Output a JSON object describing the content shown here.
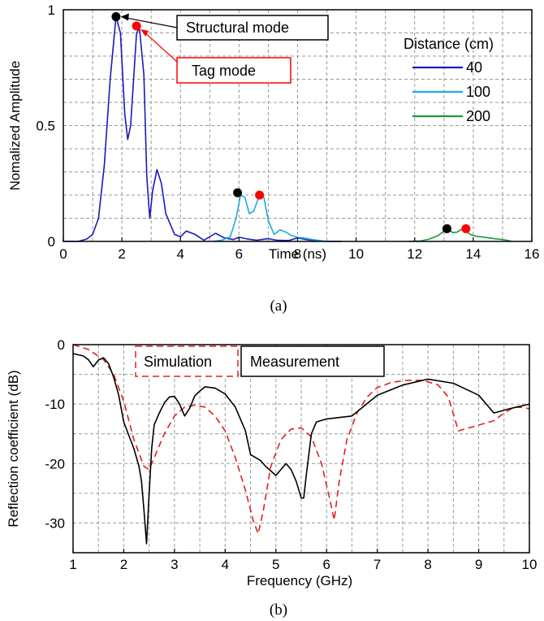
{
  "chart_data": [
    {
      "id": "a",
      "type": "line",
      "caption": "(a)",
      "xlabel": "Time (ns)",
      "ylabel": "Nomalized Amplitude",
      "xlim": [
        0,
        16
      ],
      "ylim": [
        0,
        1
      ],
      "xticks": [
        "0",
        "2",
        "4",
        "6",
        "8",
        "10",
        "12",
        "14",
        "16"
      ],
      "yticks": [
        "0",
        "0.5",
        "1"
      ],
      "grid": true,
      "legend": {
        "title": "Distance (cm)",
        "placement": "top-right"
      },
      "series": [
        {
          "name": "40",
          "color": "#1a1ab8",
          "x": [
            0,
            0.5,
            0.8,
            1.0,
            1.2,
            1.4,
            1.6,
            1.8,
            1.95,
            2.1,
            2.2,
            2.3,
            2.5,
            2.6,
            2.75,
            2.85,
            2.95,
            3.05,
            3.2,
            3.35,
            3.5,
            3.8,
            4.0,
            4.2,
            4.5,
            4.8,
            5.0,
            5.2,
            5.5,
            5.8,
            6.0,
            6.3,
            6.6,
            7.0,
            7.3,
            7.7,
            8.0,
            8.3,
            8.6,
            9.0,
            9.5
          ],
          "values": [
            0,
            0,
            0.01,
            0.03,
            0.1,
            0.33,
            0.7,
            0.97,
            0.9,
            0.55,
            0.44,
            0.5,
            0.9,
            0.92,
            0.72,
            0.28,
            0.1,
            0.22,
            0.31,
            0.25,
            0.12,
            0.03,
            0.02,
            0.045,
            0.03,
            0.005,
            0.02,
            0.035,
            0.015,
            0.008,
            0.018,
            0.01,
            0.005,
            0.012,
            0.005,
            0.004,
            0.015,
            0.008,
            0.003,
            0,
            0
          ]
        },
        {
          "name": "100",
          "color": "#20a8e0",
          "x": [
            5.1,
            5.4,
            5.7,
            5.9,
            6.05,
            6.2,
            6.35,
            6.5,
            6.7,
            6.85,
            7.0,
            7.2,
            7.4,
            7.6,
            7.8,
            8.0,
            8.2,
            8.5,
            8.8,
            9.0
          ],
          "values": [
            0,
            0.005,
            0.02,
            0.1,
            0.2,
            0.19,
            0.12,
            0.13,
            0.2,
            0.19,
            0.09,
            0.03,
            0.05,
            0.04,
            0.025,
            0.018,
            0.015,
            0.008,
            0.003,
            0
          ]
        },
        {
          "name": "200",
          "color": "#1a9a3a",
          "x": [
            11.8,
            12.2,
            12.5,
            12.8,
            13.0,
            13.15,
            13.3,
            13.45,
            13.6,
            13.75,
            13.9,
            14.1,
            14.4,
            14.7,
            15.0,
            15.2,
            15.3
          ],
          "values": [
            0,
            0.002,
            0.01,
            0.025,
            0.045,
            0.052,
            0.038,
            0.04,
            0.052,
            0.045,
            0.03,
            0.022,
            0.018,
            0.012,
            0.008,
            0.004,
            0
          ]
        }
      ],
      "markers": [
        {
          "x": 1.8,
          "y": 0.97,
          "color": "#000000"
        },
        {
          "x": 2.5,
          "y": 0.93,
          "color": "#ff0000"
        },
        {
          "x": 5.95,
          "y": 0.21,
          "color": "#000000"
        },
        {
          "x": 6.7,
          "y": 0.2,
          "color": "#ff0000"
        },
        {
          "x": 13.1,
          "y": 0.055,
          "color": "#000000"
        },
        {
          "x": 13.75,
          "y": 0.055,
          "color": "#ff0000"
        }
      ],
      "annotations": [
        {
          "text": "Structural mode",
          "border": "#000000",
          "target": [
            1.8,
            0.97
          ]
        },
        {
          "text": "Tag mode",
          "border": "#ff0000",
          "target": [
            2.5,
            0.93
          ]
        }
      ]
    },
    {
      "id": "b",
      "type": "line",
      "caption": "(b)",
      "xlabel": "Frequency (GHz)",
      "ylabel": "Reflection coefficient (dB)",
      "xlim": [
        1,
        10
      ],
      "ylim": [
        -35,
        0
      ],
      "xticks": [
        "1",
        "2",
        "3",
        "4",
        "5",
        "6",
        "7",
        "8",
        "9",
        "10"
      ],
      "yticks": [
        "0",
        "-10",
        "-20",
        "-30"
      ],
      "grid": true,
      "series": [
        {
          "name": "Measurement",
          "color": "#000000",
          "dash": "none",
          "x": [
            1.0,
            1.2,
            1.3,
            1.4,
            1.5,
            1.6,
            1.7,
            1.8,
            1.9,
            2.0,
            2.2,
            2.3,
            2.35,
            2.4,
            2.45,
            2.5,
            2.55,
            2.6,
            2.7,
            2.8,
            2.9,
            3.0,
            3.1,
            3.2,
            3.3,
            3.4,
            3.5,
            3.6,
            3.8,
            4.0,
            4.2,
            4.4,
            4.5,
            4.7,
            4.8,
            5.0,
            5.1,
            5.2,
            5.3,
            5.4,
            5.5,
            5.55,
            5.6,
            5.7,
            5.8,
            6.0,
            6.5,
            7.0,
            7.5,
            8.0,
            8.5,
            9.0,
            9.3,
            9.6,
            10.0
          ],
          "values": [
            -1.5,
            -1.9,
            -2.5,
            -3.7,
            -2.6,
            -2.2,
            -3.2,
            -5.5,
            -8.5,
            -13,
            -17.5,
            -20.5,
            -23,
            -28,
            -33.5,
            -25,
            -17.5,
            -13.5,
            -11.5,
            -9.8,
            -8.8,
            -8.7,
            -10,
            -12,
            -10.7,
            -8.6,
            -7.8,
            -7.1,
            -7.3,
            -8.3,
            -10.5,
            -14.5,
            -18.5,
            -19.5,
            -20.5,
            -22,
            -21,
            -20,
            -21,
            -23,
            -25.8,
            -25.8,
            -22,
            -15,
            -13,
            -12.5,
            -12,
            -8.5,
            -6.8,
            -5.8,
            -6.5,
            -8.5,
            -11.5,
            -10.8,
            -10
          ]
        },
        {
          "name": "Simulation",
          "color": "#e02020",
          "dash": "8 5",
          "x": [
            1.0,
            1.3,
            1.6,
            1.8,
            2.0,
            2.2,
            2.4,
            2.5,
            2.6,
            2.8,
            3.0,
            3.2,
            3.4,
            3.6,
            3.8,
            4.0,
            4.2,
            4.4,
            4.55,
            4.65,
            4.75,
            4.9,
            5.1,
            5.3,
            5.5,
            5.7,
            5.9,
            6.05,
            6.15,
            6.25,
            6.4,
            6.6,
            6.8,
            7.0,
            7.3,
            7.6,
            7.9,
            8.2,
            8.4,
            8.6,
            9.3,
            9.5,
            9.7,
            9.9,
            10.0
          ],
          "values": [
            0,
            -0.8,
            -2.5,
            -5,
            -9.5,
            -16,
            -20.5,
            -21,
            -19,
            -15,
            -12,
            -10.5,
            -10.2,
            -10.5,
            -12,
            -14.5,
            -19,
            -24.5,
            -29.5,
            -31.8,
            -28,
            -20.5,
            -16,
            -14.2,
            -14,
            -15.5,
            -20,
            -25.5,
            -29.5,
            -23,
            -16,
            -11.5,
            -8.8,
            -7.2,
            -6.3,
            -6,
            -6,
            -6.8,
            -8.8,
            -14.5,
            -12.8,
            -11.5,
            -10.5,
            -10.6,
            -10.8
          ]
        }
      ],
      "legend": {
        "placement": "top",
        "items": [
          "Simulation",
          "Measurement"
        ]
      }
    }
  ]
}
